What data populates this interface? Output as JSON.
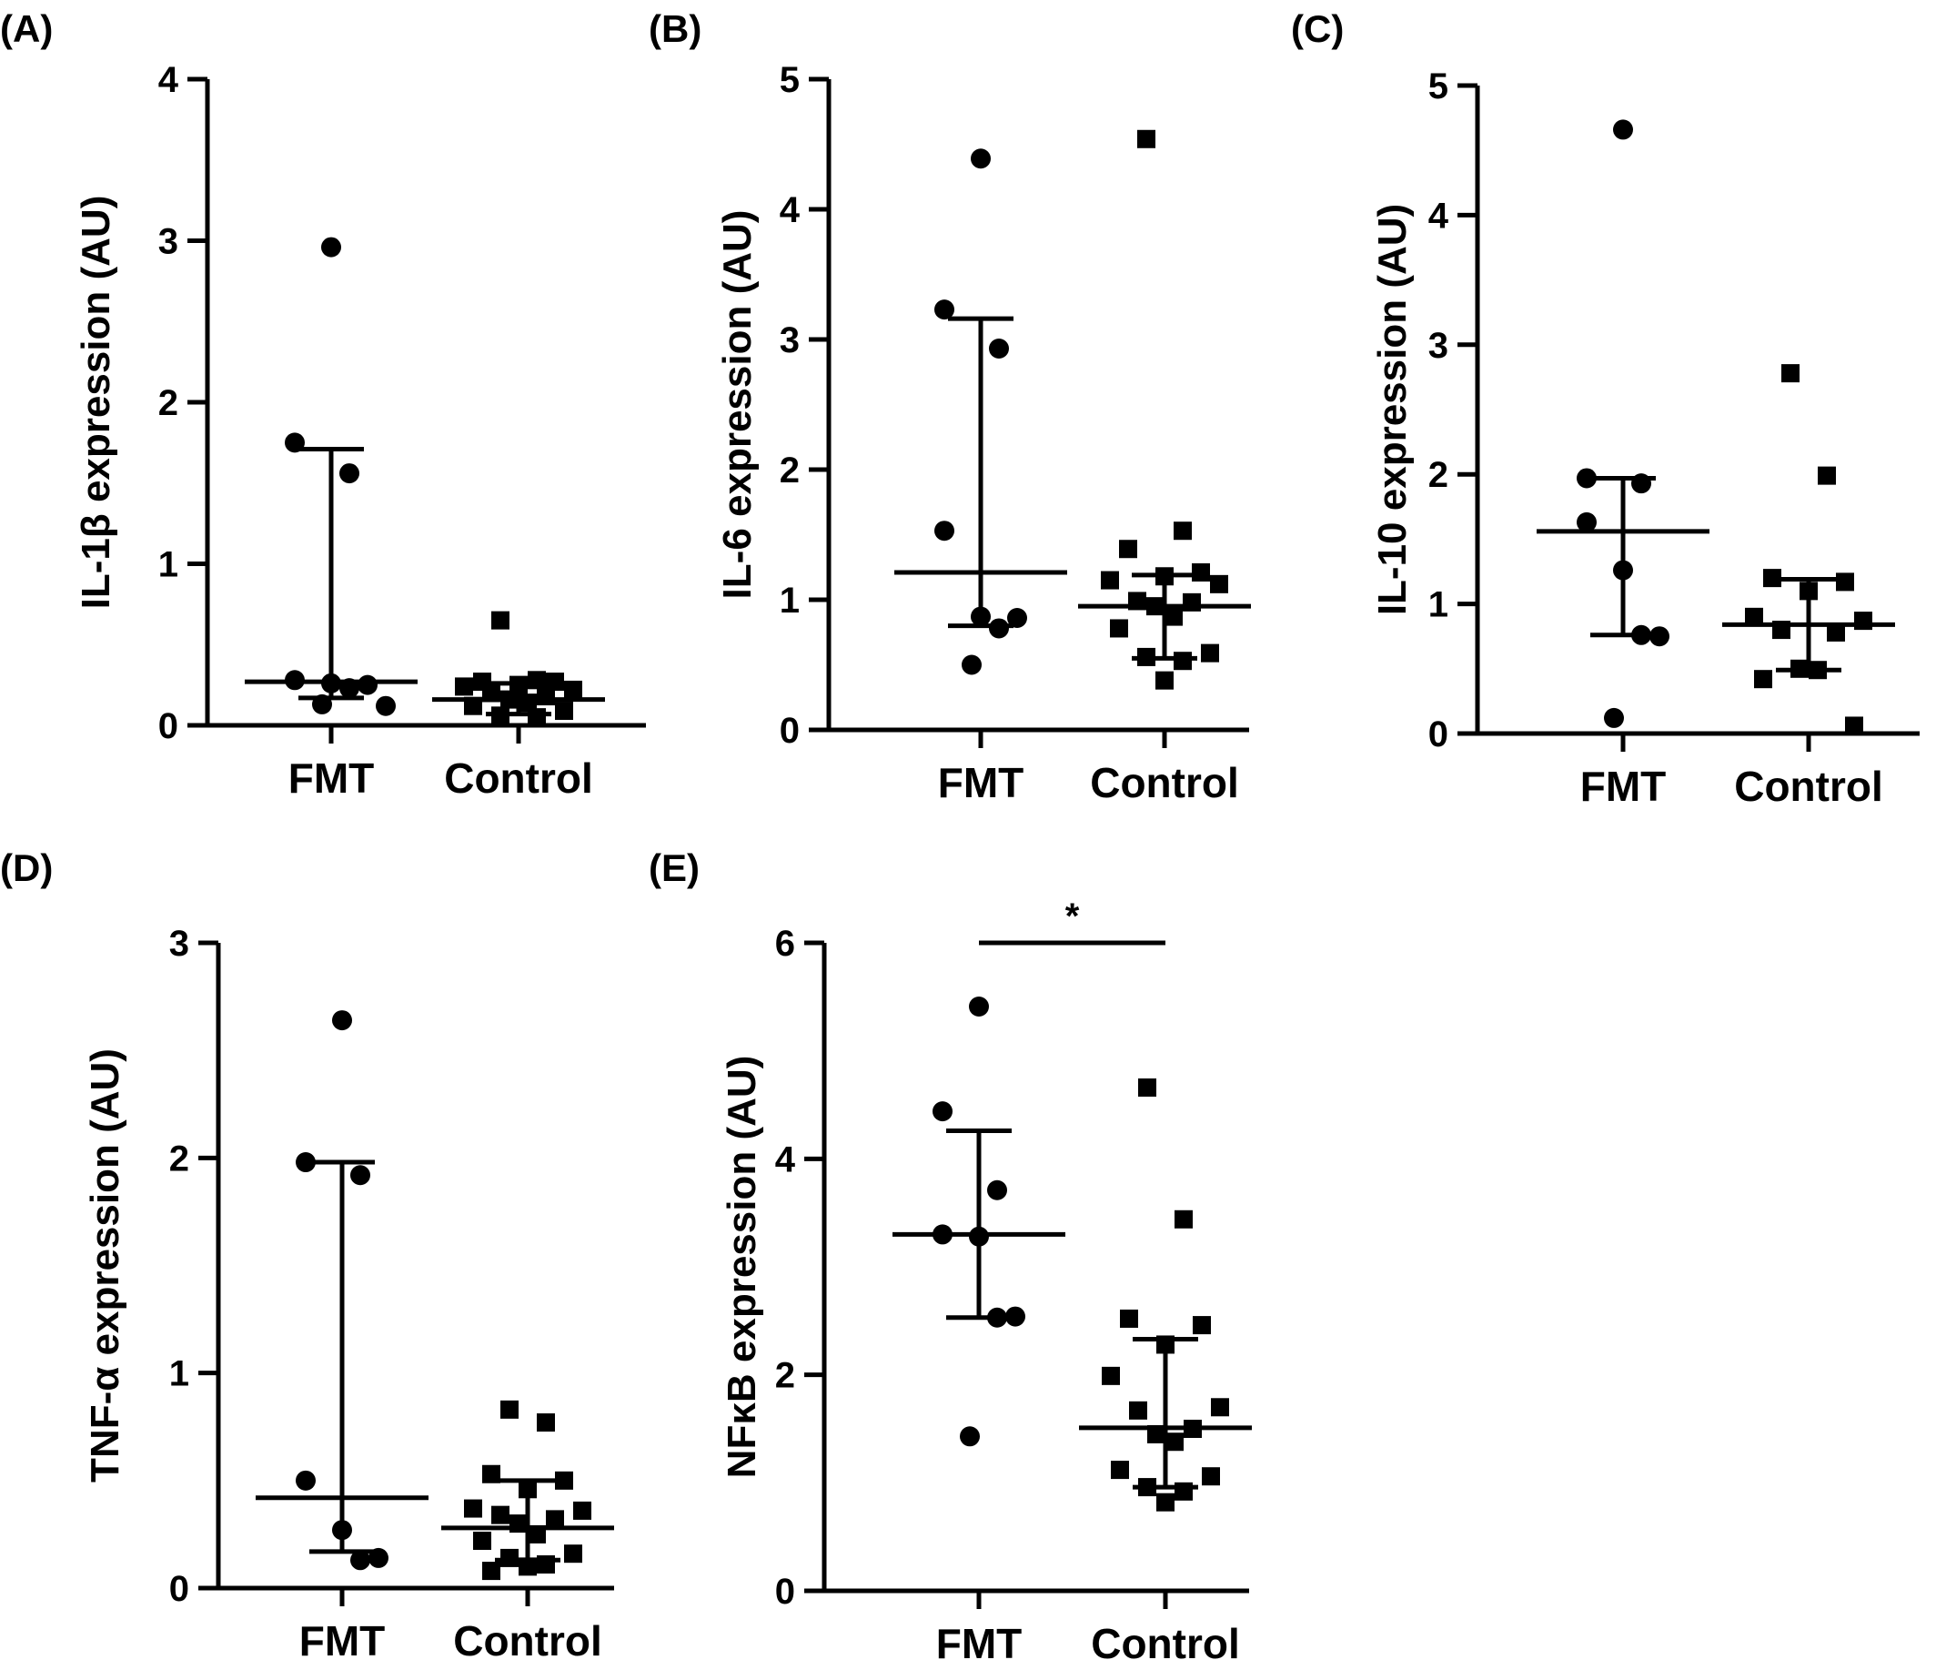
{
  "chart_data": [
    {
      "panel": "(A)",
      "type": "scatter",
      "categories": [
        "FMT",
        "Control"
      ],
      "ylabel": "IL-1β expression (AU)",
      "ylim": [
        0,
        4
      ],
      "yticks": [
        "0",
        "1",
        "2",
        "3",
        "4"
      ],
      "series": [
        {
          "values": [
            2.96,
            1.75,
            1.56,
            0.28,
            0.26,
            0.25,
            0.23,
            0.13,
            0.12
          ]
        },
        {
          "values": [
            0.65,
            0.28,
            0.27,
            0.27,
            0.25,
            0.24,
            0.22,
            0.2,
            0.18,
            0.16,
            0.14,
            0.12,
            0.09,
            0.06,
            0.05
          ]
        }
      ],
      "summary": [
        {
          "center": 0.27,
          "low": 0.17,
          "high": 1.71
        },
        {
          "center": 0.16,
          "low": 0.07,
          "high": 0.26
        }
      ],
      "significance": []
    },
    {
      "panel": "(B)",
      "type": "scatter",
      "categories": [
        "FMT",
        "Control"
      ],
      "ylabel": "IL-6 expression (AU)",
      "ylim": [
        0,
        5
      ],
      "yticks": [
        "0",
        "1",
        "2",
        "3",
        "4",
        "5"
      ],
      "series": [
        {
          "values": [
            4.39,
            3.23,
            2.93,
            1.53,
            0.87,
            0.86,
            0.78,
            0.5
          ]
        },
        {
          "values": [
            4.54,
            1.53,
            1.39,
            1.21,
            1.18,
            1.15,
            1.12,
            0.99,
            0.98,
            0.95,
            0.87,
            0.78,
            0.59,
            0.56,
            0.53,
            0.38
          ]
        }
      ],
      "summary": [
        {
          "center": 1.21,
          "low": 0.8,
          "high": 3.16
        },
        {
          "center": 0.95,
          "low": 0.55,
          "high": 1.19
        }
      ],
      "significance": []
    },
    {
      "panel": "(C)",
      "type": "scatter",
      "categories": [
        "FMT",
        "Control"
      ],
      "ylabel": "IL-10 expression (AU)",
      "ylim": [
        0,
        5
      ],
      "yticks": [
        "0",
        "1",
        "2",
        "3",
        "4",
        "5"
      ],
      "series": [
        {
          "values": [
            4.66,
            1.97,
            1.93,
            1.63,
            1.26,
            0.75,
            0.76,
            0.12
          ]
        },
        {
          "values": [
            2.78,
            1.99,
            1.2,
            1.17,
            1.1,
            0.9,
            0.87,
            0.8,
            0.78,
            0.5,
            0.49,
            0.42,
            0.06
          ]
        }
      ],
      "summary": [
        {
          "center": 1.56,
          "low": 0.76,
          "high": 1.97
        },
        {
          "center": 0.84,
          "low": 0.49,
          "high": 1.19
        }
      ],
      "significance": []
    },
    {
      "panel": "(D)",
      "type": "scatter",
      "categories": [
        "FMT",
        "Control"
      ],
      "ylabel": "TNF-α expression (AU)",
      "ylim": [
        0,
        3
      ],
      "yticks": [
        "0",
        "1",
        "2",
        "3"
      ],
      "series": [
        {
          "values": [
            2.64,
            1.98,
            1.92,
            0.5,
            0.27,
            0.14,
            0.13
          ]
        },
        {
          "values": [
            0.83,
            0.77,
            0.53,
            0.5,
            0.46,
            0.37,
            0.36,
            0.34,
            0.32,
            0.3,
            0.25,
            0.22,
            0.16,
            0.14,
            0.11,
            0.1,
            0.08
          ]
        }
      ],
      "summary": [
        {
          "center": 0.42,
          "low": 0.17,
          "high": 1.98
        },
        {
          "center": 0.28,
          "low": 0.13,
          "high": 0.5
        }
      ],
      "significance": []
    },
    {
      "panel": "(E)",
      "type": "scatter",
      "categories": [
        "FMT",
        "Control"
      ],
      "ylabel": "NFκB expression (AU)",
      "ylim": [
        0,
        6
      ],
      "yticks": [
        "0",
        "2",
        "4",
        "6"
      ],
      "series": [
        {
          "values": [
            5.41,
            4.44,
            3.71,
            3.3,
            3.28,
            2.54,
            2.53,
            1.43
          ]
        },
        {
          "values": [
            4.66,
            3.44,
            2.52,
            2.46,
            2.28,
            1.99,
            1.7,
            1.67,
            1.5,
            1.45,
            1.38,
            1.12,
            1.06,
            0.96,
            0.92,
            0.82
          ]
        }
      ],
      "summary": [
        {
          "center": 3.3,
          "low": 2.53,
          "high": 4.26
        },
        {
          "center": 1.51,
          "low": 0.96,
          "high": 2.33
        }
      ],
      "significance": [
        {
          "between": [
            "FMT",
            "Control"
          ],
          "value": 6.0,
          "label": "*"
        }
      ]
    }
  ]
}
